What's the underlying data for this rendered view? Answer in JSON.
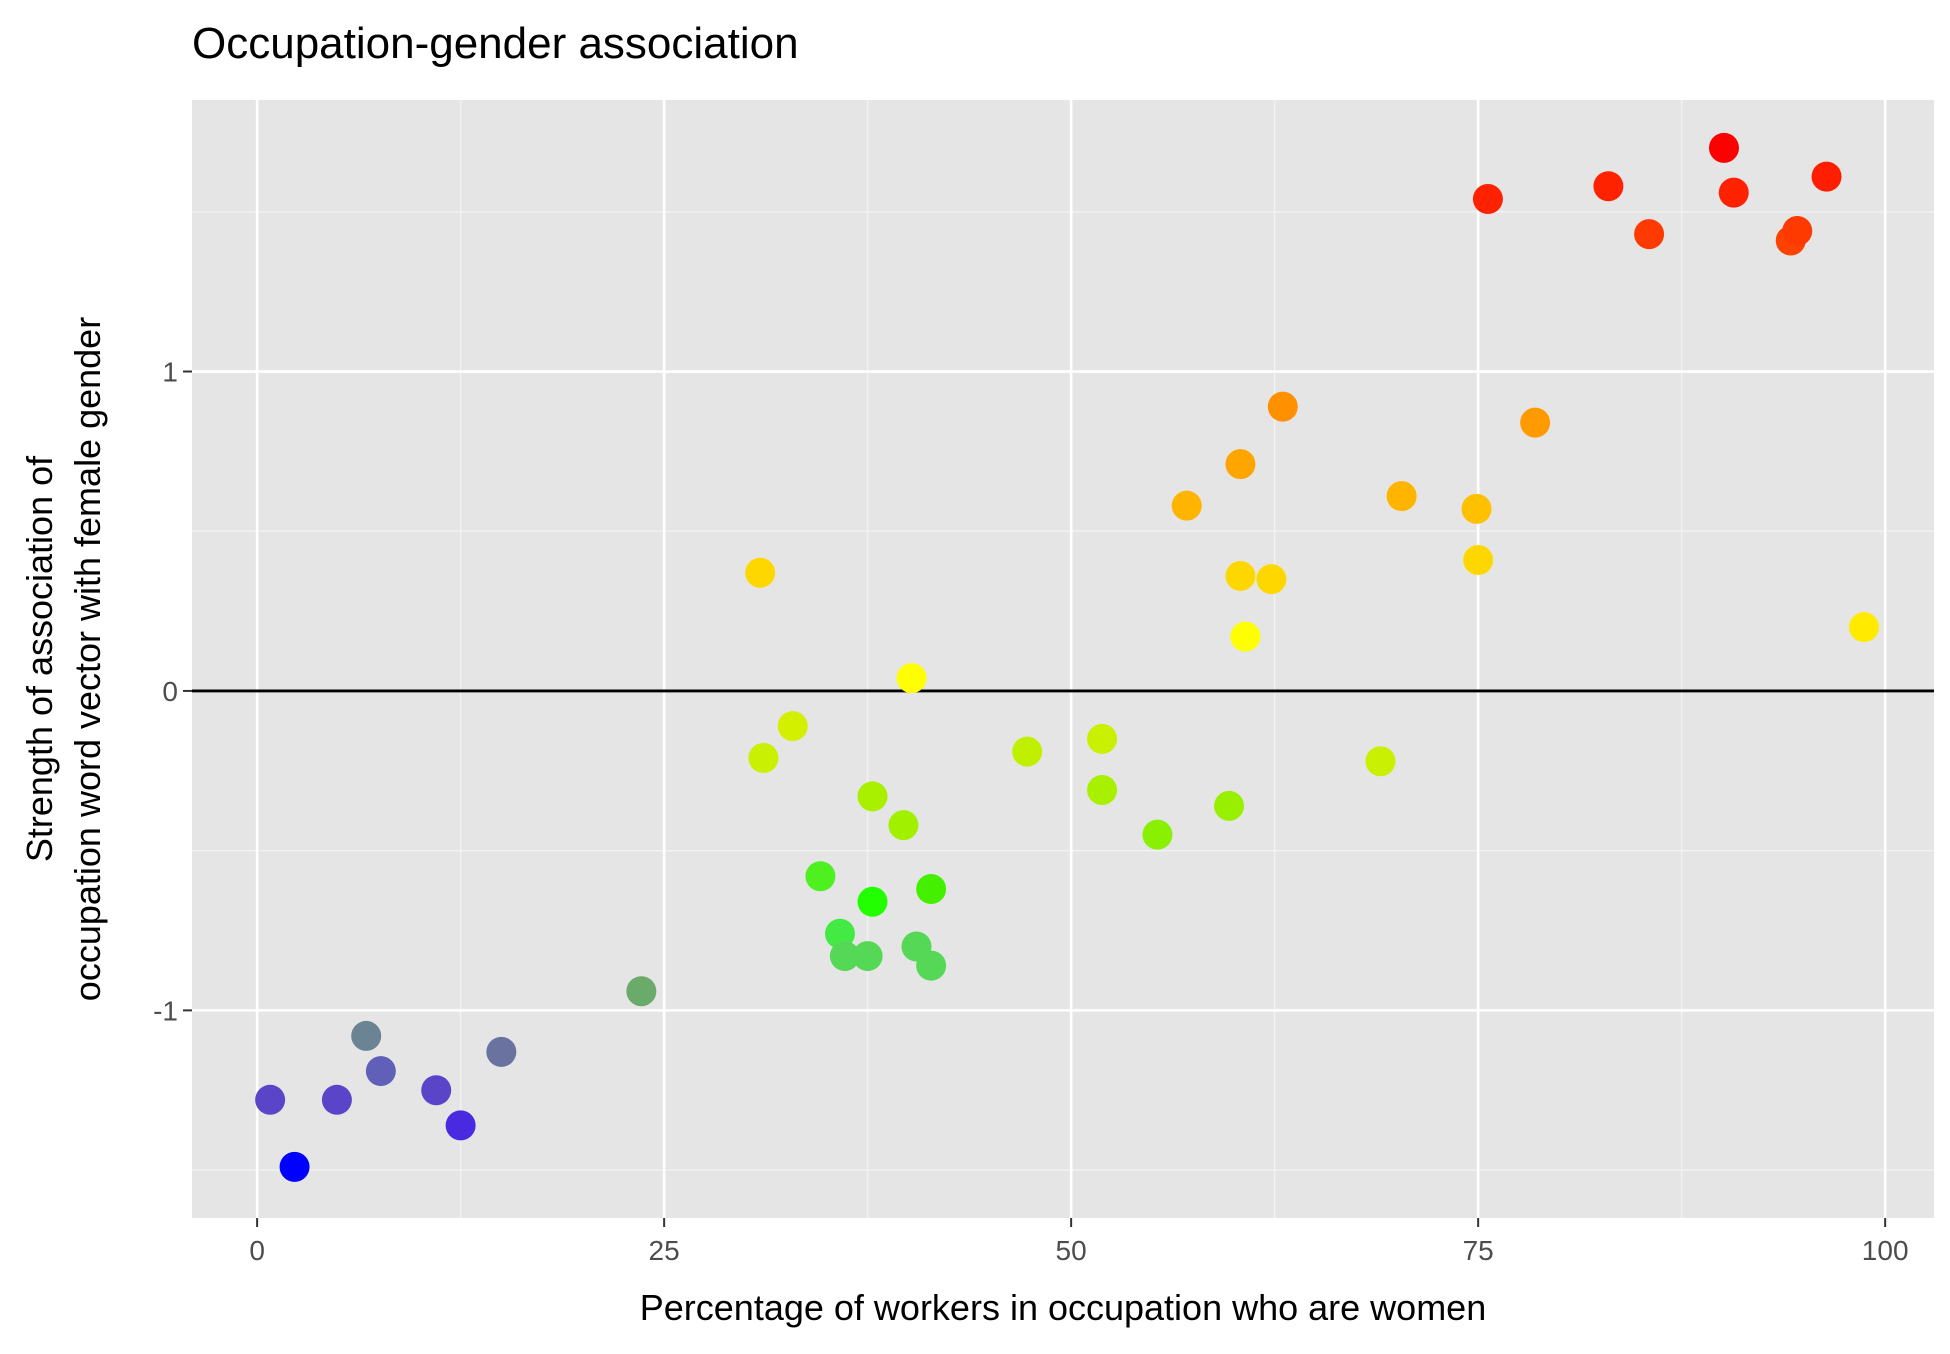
{
  "chart_data": {
    "type": "scatter",
    "title": "Occupation-gender association",
    "xlabel": "Percentage of workers in occupation who are women",
    "ylabel_lines": [
      "Strength of association of",
      "occupation word vector with female gender"
    ],
    "xlim": [
      -4,
      103
    ],
    "ylim": [
      -1.65,
      1.85
    ],
    "x_ticks": [
      0,
      25,
      50,
      75,
      100
    ],
    "x_tick_labels": [
      "0",
      "25",
      "50",
      "75",
      "100"
    ],
    "y_ticks": [
      -1,
      0,
      1
    ],
    "y_tick_labels": [
      "-1",
      "0",
      "1"
    ],
    "grid": true,
    "reference_line_y": 0,
    "colors": {
      "panel_background": "#e5e5e5",
      "grid_major": "#ffffff",
      "grid_minor": "#f2f2f2",
      "reference_line": "#000000"
    },
    "points": [
      {
        "x": 0.8,
        "y": -1.28,
        "color": "#5a45c8"
      },
      {
        "x": 2.3,
        "y": -1.49,
        "color": "#0000ff"
      },
      {
        "x": 4.9,
        "y": -1.28,
        "color": "#5a45c8"
      },
      {
        "x": 6.7,
        "y": -1.08,
        "color": "#6a8494"
      },
      {
        "x": 7.6,
        "y": -1.19,
        "color": "#6060b8"
      },
      {
        "x": 11.0,
        "y": -1.25,
        "color": "#5a45c8"
      },
      {
        "x": 12.5,
        "y": -1.36,
        "color": "#4a2ae0"
      },
      {
        "x": 15.0,
        "y": -1.13,
        "color": "#6a72a0"
      },
      {
        "x": 23.6,
        "y": -0.94,
        "color": "#6aaa6a"
      },
      {
        "x": 30.9,
        "y": 0.37,
        "color": "#ffd700"
      },
      {
        "x": 31.1,
        "y": -0.21,
        "color": "#c8f000"
      },
      {
        "x": 32.9,
        "y": -0.11,
        "color": "#d2f000"
      },
      {
        "x": 34.6,
        "y": -0.58,
        "color": "#4ef020"
      },
      {
        "x": 35.8,
        "y": -0.76,
        "color": "#44ea44"
      },
      {
        "x": 36.1,
        "y": -0.83,
        "color": "#55d855"
      },
      {
        "x": 37.5,
        "y": -0.83,
        "color": "#55d855"
      },
      {
        "x": 37.8,
        "y": -0.33,
        "color": "#a8f000"
      },
      {
        "x": 37.8,
        "y": -0.66,
        "color": "#22ff00"
      },
      {
        "x": 39.7,
        "y": -0.42,
        "color": "#a0f000"
      },
      {
        "x": 40.2,
        "y": 0.04,
        "color": "#ffff00"
      },
      {
        "x": 40.5,
        "y": -0.8,
        "color": "#55d855"
      },
      {
        "x": 41.4,
        "y": -0.62,
        "color": "#44f000"
      },
      {
        "x": 41.4,
        "y": -0.86,
        "color": "#55d855"
      },
      {
        "x": 47.3,
        "y": -0.19,
        "color": "#c0f000"
      },
      {
        "x": 51.9,
        "y": -0.15,
        "color": "#c8f000"
      },
      {
        "x": 51.9,
        "y": -0.31,
        "color": "#a8f000"
      },
      {
        "x": 55.3,
        "y": -0.45,
        "color": "#88f000"
      },
      {
        "x": 57.1,
        "y": 0.58,
        "color": "#ffb400"
      },
      {
        "x": 59.7,
        "y": -0.36,
        "color": "#98f000"
      },
      {
        "x": 60.4,
        "y": 0.71,
        "color": "#ffa500"
      },
      {
        "x": 60.4,
        "y": 0.36,
        "color": "#ffd700"
      },
      {
        "x": 60.7,
        "y": 0.17,
        "color": "#ffff00"
      },
      {
        "x": 62.3,
        "y": 0.35,
        "color": "#ffd700"
      },
      {
        "x": 63.0,
        "y": 0.89,
        "color": "#ff9000"
      },
      {
        "x": 69.0,
        "y": -0.22,
        "color": "#c8f000"
      },
      {
        "x": 70.3,
        "y": 0.61,
        "color": "#ffb400"
      },
      {
        "x": 74.9,
        "y": 0.57,
        "color": "#ffc000"
      },
      {
        "x": 75.0,
        "y": 0.41,
        "color": "#ffd700"
      },
      {
        "x": 75.6,
        "y": 1.54,
        "color": "#ff2200"
      },
      {
        "x": 78.5,
        "y": 0.84,
        "color": "#ff9a00"
      },
      {
        "x": 83.0,
        "y": 1.58,
        "color": "#ff2200"
      },
      {
        "x": 85.5,
        "y": 1.43,
        "color": "#ff3a00"
      },
      {
        "x": 90.1,
        "y": 1.7,
        "color": "#ff0000"
      },
      {
        "x": 90.7,
        "y": 1.56,
        "color": "#ff2200"
      },
      {
        "x": 94.2,
        "y": 1.41,
        "color": "#ff4200"
      },
      {
        "x": 94.6,
        "y": 1.44,
        "color": "#ff3a00"
      },
      {
        "x": 96.4,
        "y": 1.61,
        "color": "#ff1e00"
      },
      {
        "x": 98.7,
        "y": 0.2,
        "color": "#ffea00"
      }
    ]
  }
}
